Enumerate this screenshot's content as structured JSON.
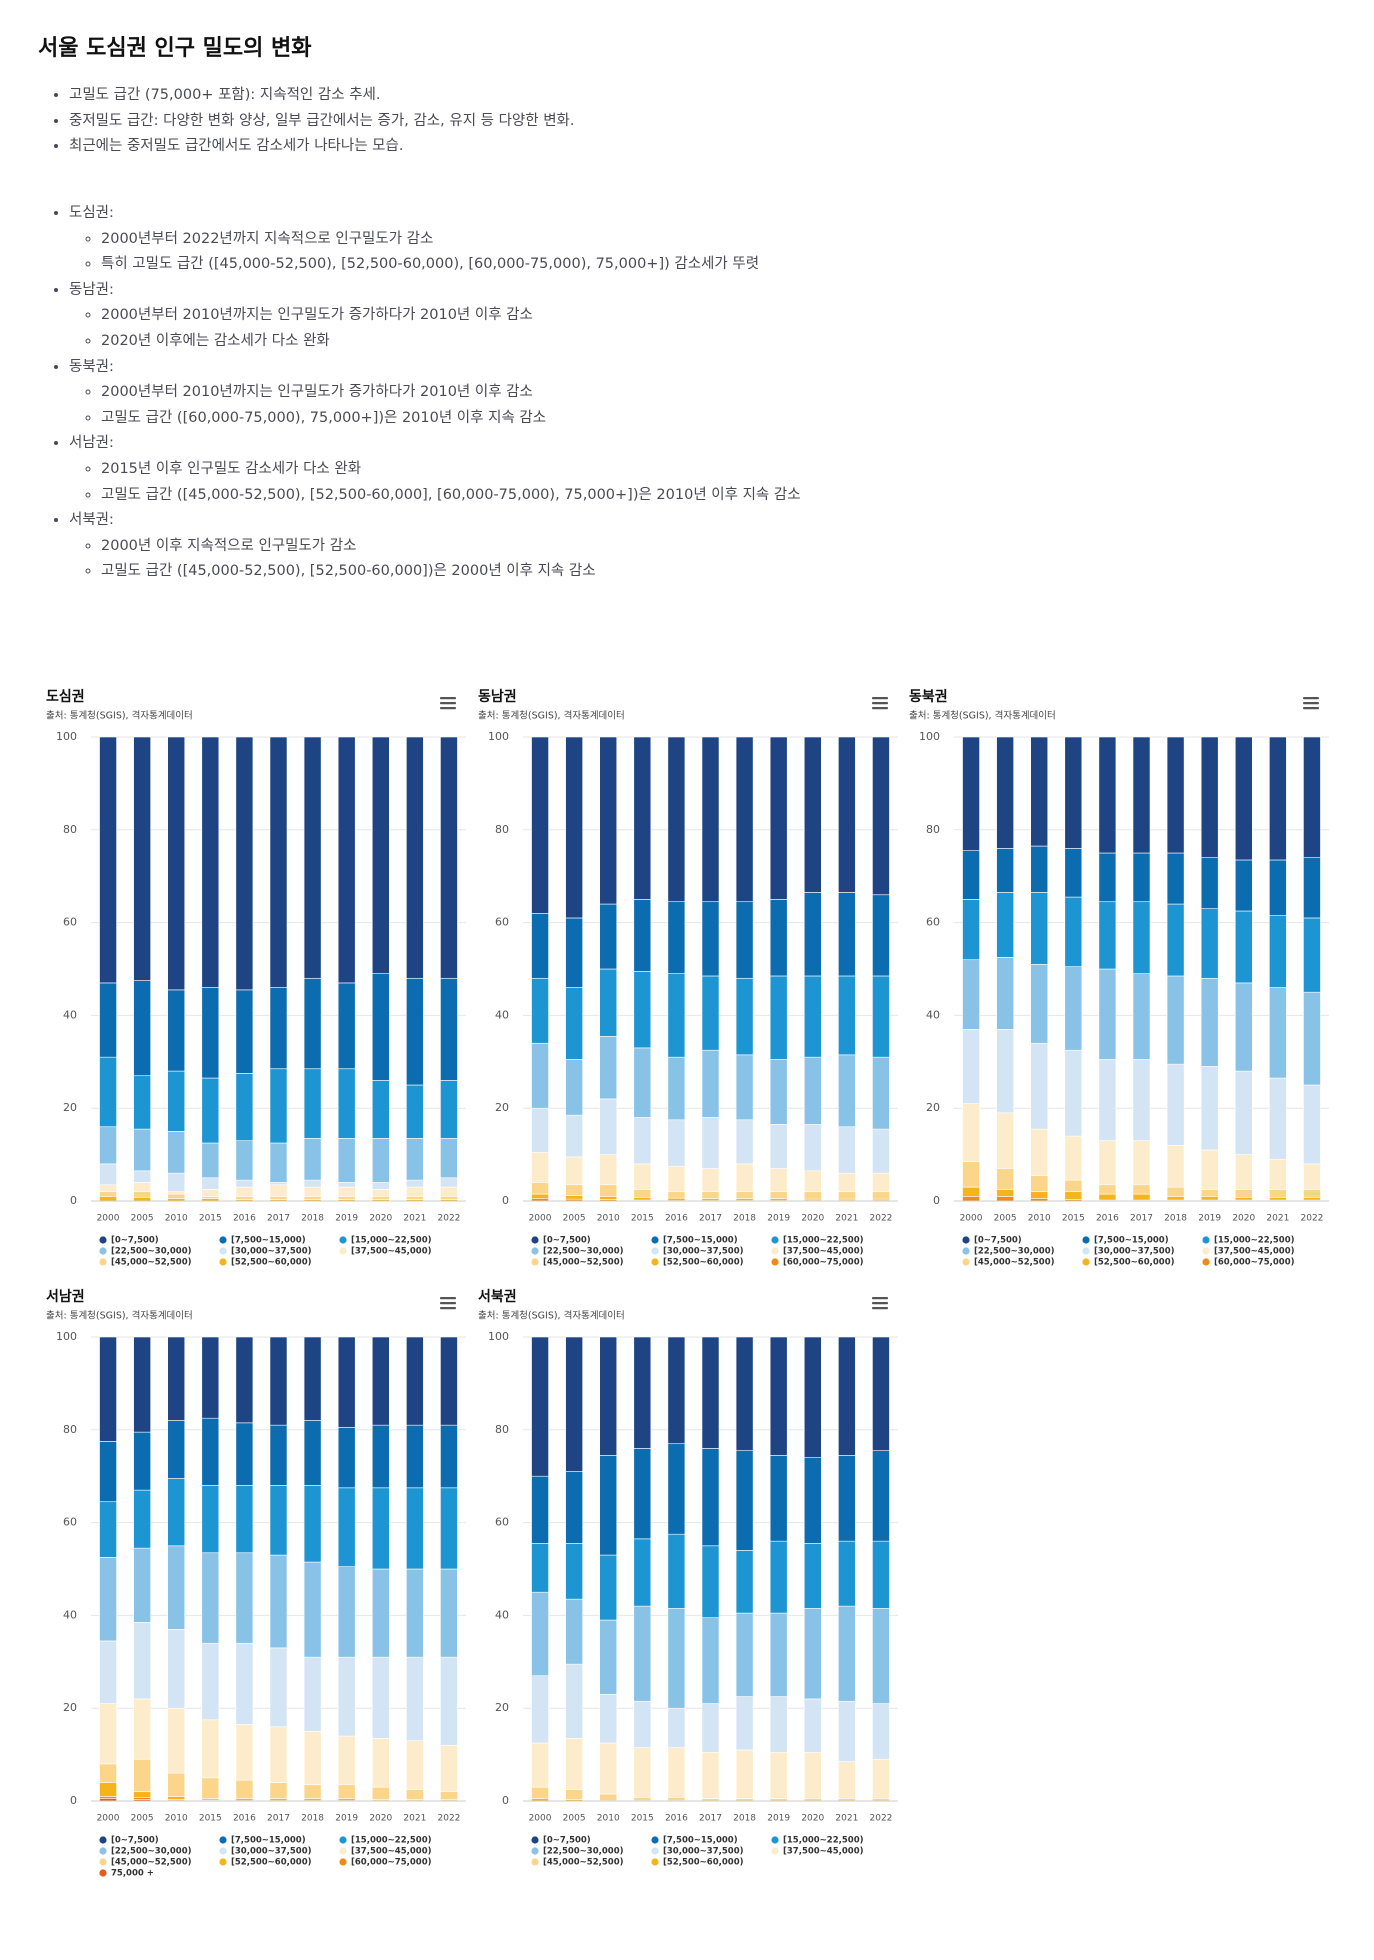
{
  "title": "서울 도심권 인구 밀도의 변화",
  "summary": [
    "고밀도 급간 (75,000+ 포함): 지속적인 감소 추세.",
    "중저밀도 급간: 다양한 변화 양상, 일부 급간에서는 증가, 감소, 유지 등 다양한 변화.",
    "최근에는 중저밀도 급간에서도 감소세가 나타나는 모습."
  ],
  "regions": [
    {
      "name": "도심권:",
      "points": [
        "2000년부터 2022년까지 지속적으로 인구밀도가 감소",
        "특히 고밀도 급간 ([45,000-52,500), [52,500-60,000), [60,000-75,000), 75,000+]) 감소세가 뚜렷"
      ]
    },
    {
      "name": "동남권:",
      "points": [
        "2000년부터 2010년까지는 인구밀도가 증가하다가 2010년 이후 감소",
        "2020년 이후에는 감소세가 다소 완화"
      ]
    },
    {
      "name": "동북권:",
      "points": [
        "2000년부터 2010년까지는 인구밀도가 증가하다가 2010년 이후 감소",
        "고밀도 급간 ([60,000-75,000), 75,000+])은 2010년 이후 지속 감소"
      ]
    },
    {
      "name": "서남권:",
      "points": [
        "2015년 이후 인구밀도 감소세가 다소 완화",
        "고밀도 급간 ([45,000-52,500), [52,500-60,000], [60,000-75,000), 75,000+])은 2010년 이후 지속 감소"
      ]
    },
    {
      "name": "서북권:",
      "points": [
        "2000년 이후 지속적으로 인구밀도가 감소",
        "고밀도 급간 ([45,000-52,500), [52,500-60,000])은 2000년 이후 지속 감소"
      ]
    }
  ],
  "chart_data": [
    {
      "type": "bar",
      "stacked": true,
      "grid": true,
      "title": "도심권",
      "subtitle": "출처: 통계청(SGIS), 격자통계데이터",
      "categories": [
        "2000",
        "2005",
        "2010",
        "2015",
        "2016",
        "2017",
        "2018",
        "2019",
        "2020",
        "2021",
        "2022"
      ],
      "ylim": [
        0,
        100
      ],
      "yticks": [
        0,
        20,
        40,
        60,
        80,
        100
      ],
      "series": [
        {
          "name": "[0~7,500)",
          "color": "#1f4484",
          "values": [
            53,
            52.5,
            54.5,
            54,
            54.5,
            54,
            52,
            53,
            51,
            52,
            52
          ]
        },
        {
          "name": "[7,500~15,000)",
          "color": "#0b6db0",
          "values": [
            16,
            20.5,
            17.5,
            19.5,
            18,
            17.5,
            19.5,
            18.5,
            23,
            23,
            22
          ]
        },
        {
          "name": "[15,000~22,500)",
          "color": "#1d95d3",
          "values": [
            15,
            11.5,
            13,
            14,
            14.5,
            16,
            15,
            15,
            12.5,
            11.5,
            12.5
          ]
        },
        {
          "name": "[22,500~30,000)",
          "color": "#88c2e7",
          "values": [
            8,
            9,
            9,
            7.5,
            8.5,
            8.5,
            9,
            9.5,
            9.5,
            9,
            8.5
          ]
        },
        {
          "name": "[30,000~37,500)",
          "color": "#d3e4f4",
          "values": [
            4.5,
            2.5,
            4,
            2.5,
            1.5,
            0.5,
            1.5,
            1,
            1.5,
            1.5,
            2
          ]
        },
        {
          "name": "[37,500~45,000)",
          "color": "#fdeccb",
          "values": [
            1.5,
            2,
            0.5,
            1.5,
            2,
            2.5,
            2,
            2,
            1.5,
            2,
            2
          ]
        },
        {
          "name": "[45,000~52,500)",
          "color": "#fbd68a",
          "values": [
            1,
            1.2,
            1,
            0.5,
            0.7,
            0.7,
            0.7,
            0.7,
            0.7,
            0.7,
            0.7
          ]
        },
        {
          "name": "[52,500~60,000)",
          "color": "#f4b41a",
          "values": [
            1,
            0.8,
            0.5,
            0.5,
            0.3,
            0.3,
            0.3,
            0.3,
            0.3,
            0.3,
            0.3
          ]
        }
      ]
    },
    {
      "type": "bar",
      "stacked": true,
      "grid": true,
      "title": "동남권",
      "subtitle": "출처: 통계청(SGIS), 격자통계데이터",
      "categories": [
        "2000",
        "2005",
        "2010",
        "2015",
        "2016",
        "2017",
        "2018",
        "2019",
        "2020",
        "2021",
        "2022"
      ],
      "ylim": [
        0,
        100
      ],
      "yticks": [
        0,
        20,
        40,
        60,
        80,
        100
      ],
      "series": [
        {
          "name": "[0~7,500)",
          "color": "#1f4484",
          "values": [
            38,
            39,
            36,
            35,
            35.5,
            35.5,
            35.5,
            35,
            33.5,
            33.5,
            34
          ]
        },
        {
          "name": "[7,500~15,000)",
          "color": "#0b6db0",
          "values": [
            14,
            15,
            14,
            15.5,
            15.5,
            16,
            16.5,
            16.5,
            18,
            18,
            17.5
          ]
        },
        {
          "name": "[15,000~22,500)",
          "color": "#1d95d3",
          "values": [
            14,
            15.5,
            14.5,
            16.5,
            18,
            16,
            16.5,
            18,
            17.5,
            17,
            17.5
          ]
        },
        {
          "name": "[22,500~30,000)",
          "color": "#88c2e7",
          "values": [
            14,
            12,
            13.5,
            15,
            13.5,
            14.5,
            14,
            14,
            14.5,
            15.5,
            15.5
          ]
        },
        {
          "name": "[30,000~37,500)",
          "color": "#d3e4f4",
          "values": [
            9.5,
            9,
            12,
            10,
            10,
            11,
            9.5,
            9.5,
            10,
            10,
            9.5
          ]
        },
        {
          "name": "[37,500~45,000)",
          "color": "#fdeccb",
          "values": [
            6.5,
            6,
            6.5,
            5.5,
            5.5,
            5,
            6,
            5,
            4.5,
            4,
            4
          ]
        },
        {
          "name": "[45,000~52,500)",
          "color": "#fbd68a",
          "values": [
            2.5,
            2.3,
            2.5,
            1.7,
            1.4,
            1.5,
            1.5,
            1.5,
            1.6,
            1.6,
            1.6
          ]
        },
        {
          "name": "[52,500~60,000)",
          "color": "#f4b41a",
          "values": [
            1,
            0.8,
            0.7,
            0.6,
            0.5,
            0.4,
            0.4,
            0.4,
            0.3,
            0.3,
            0.3
          ]
        },
        {
          "name": "[60,000~75,000)",
          "color": "#f08a1c",
          "values": [
            0.5,
            0.4,
            0.3,
            0.2,
            0.1,
            0.1,
            0.1,
            0.1,
            0.1,
            0.1,
            0.1
          ]
        }
      ]
    },
    {
      "type": "bar",
      "stacked": true,
      "grid": true,
      "title": "동북권",
      "subtitle": "출처: 통계청(SGIS), 격자통계데이터",
      "categories": [
        "2000",
        "2005",
        "2010",
        "2015",
        "2016",
        "2017",
        "2018",
        "2019",
        "2020",
        "2021",
        "2022"
      ],
      "ylim": [
        0,
        100
      ],
      "yticks": [
        0,
        20,
        40,
        60,
        80,
        100
      ],
      "series": [
        {
          "name": "[0~7,500)",
          "color": "#1f4484",
          "values": [
            24.5,
            24,
            23.5,
            24,
            25,
            25,
            25,
            26,
            26.5,
            26.5,
            26
          ]
        },
        {
          "name": "[7,500~15,000)",
          "color": "#0b6db0",
          "values": [
            10.5,
            9.5,
            10,
            10.5,
            10.5,
            10.5,
            11,
            11,
            11,
            12,
            13
          ]
        },
        {
          "name": "[15,000~22,500)",
          "color": "#1d95d3",
          "values": [
            13,
            14,
            15.5,
            15,
            14.5,
            15.5,
            15.5,
            15,
            15.5,
            15.5,
            16
          ]
        },
        {
          "name": "[22,500~30,000)",
          "color": "#88c2e7",
          "values": [
            15,
            15.5,
            17,
            18,
            19.5,
            18.5,
            19,
            19,
            19,
            19.5,
            20
          ]
        },
        {
          "name": "[30,000~37,500)",
          "color": "#d3e4f4",
          "values": [
            16,
            18,
            18.5,
            18.5,
            17.5,
            17.5,
            17.5,
            18,
            18,
            17.5,
            17
          ]
        },
        {
          "name": "[37,500~45,000)",
          "color": "#fdeccb",
          "values": [
            12.5,
            12,
            10,
            9.5,
            9.5,
            9.5,
            9,
            8.5,
            7.5,
            6.5,
            5.5
          ]
        },
        {
          "name": "[45,000~52,500)",
          "color": "#fbd68a",
          "values": [
            5.5,
            4.5,
            3.5,
            2.5,
            2,
            2,
            2,
            1.5,
            1.7,
            1.7,
            1.7
          ]
        },
        {
          "name": "[52,500~60,000)",
          "color": "#f4b41a",
          "values": [
            2,
            1.5,
            1.5,
            1.7,
            1.3,
            1.3,
            0.8,
            0.8,
            0.6,
            0.6,
            0.6
          ]
        },
        {
          "name": "[60,000~75,000)",
          "color": "#f08a1c",
          "values": [
            1,
            1,
            0.5,
            0.3,
            0.2,
            0.2,
            0.2,
            0.2,
            0.2,
            0.2,
            0.2
          ]
        }
      ]
    },
    {
      "type": "bar",
      "stacked": true,
      "grid": true,
      "title": "서남권",
      "subtitle": "출처: 통계청(SGIS), 격자통계데이터",
      "categories": [
        "2000",
        "2005",
        "2010",
        "2015",
        "2016",
        "2017",
        "2018",
        "2019",
        "2020",
        "2021",
        "2022"
      ],
      "ylim": [
        0,
        100
      ],
      "yticks": [
        0,
        20,
        40,
        60,
        80,
        100
      ],
      "series": [
        {
          "name": "[0~7,500)",
          "color": "#1f4484",
          "values": [
            22.5,
            20.5,
            18,
            17.5,
            18.5,
            19,
            18,
            19.5,
            19,
            19,
            19
          ]
        },
        {
          "name": "[7,500~15,000)",
          "color": "#0b6db0",
          "values": [
            13,
            12.5,
            12.5,
            14.5,
            13.5,
            13,
            14,
            13,
            13.5,
            13.5,
            13.5
          ]
        },
        {
          "name": "[15,000~22,500)",
          "color": "#1d95d3",
          "values": [
            12,
            12.5,
            14.5,
            14.5,
            14.5,
            15,
            16.5,
            17,
            17.5,
            17.5,
            17.5
          ]
        },
        {
          "name": "[22,500~30,000)",
          "color": "#88c2e7",
          "values": [
            18,
            16,
            18,
            19.5,
            19.5,
            20,
            20.5,
            19.5,
            19,
            19,
            19
          ]
        },
        {
          "name": "[30,000~37,500)",
          "color": "#d3e4f4",
          "values": [
            13.5,
            16.5,
            17,
            16.5,
            17.5,
            17,
            16,
            17,
            17.5,
            18,
            19
          ]
        },
        {
          "name": "[37,500~45,000)",
          "color": "#fdeccb",
          "values": [
            13,
            13,
            14,
            12.5,
            12,
            12,
            11.5,
            10.5,
            10.5,
            10.5,
            10
          ]
        },
        {
          "name": "[45,000~52,500)",
          "color": "#fbd68a",
          "values": [
            4,
            7,
            5,
            4.5,
            4,
            3.5,
            3,
            3,
            2.7,
            2.2,
            1.7
          ]
        },
        {
          "name": "[52,500~60,000)",
          "color": "#f4b41a",
          "values": [
            3,
            1.2,
            0.7,
            0.3,
            0.4,
            0.4,
            0.4,
            0.4,
            0.2,
            0.2,
            0.2
          ]
        },
        {
          "name": "[60,000~75,000)",
          "color": "#f08a1c",
          "values": [
            0.5,
            0.5,
            0.2,
            0.2,
            0.1,
            0.1,
            0.1,
            0.1,
            0.1,
            0.1,
            0.1
          ]
        },
        {
          "name": "75,000 +",
          "color": "#e85a1a",
          "values": [
            0.5,
            0.3,
            0.1,
            0,
            0,
            0,
            0,
            0,
            0,
            0,
            0
          ]
        }
      ]
    },
    {
      "type": "bar",
      "stacked": true,
      "grid": true,
      "title": "서북권",
      "subtitle": "출처: 통계청(SGIS), 격자통계데이터",
      "categories": [
        "2000",
        "2005",
        "2010",
        "2015",
        "2016",
        "2017",
        "2018",
        "2019",
        "2020",
        "2021",
        "2022"
      ],
      "ylim": [
        0,
        100
      ],
      "yticks": [
        0,
        20,
        40,
        60,
        80,
        100
      ],
      "series": [
        {
          "name": "[0~7,500)",
          "color": "#1f4484",
          "values": [
            30,
            29,
            25.5,
            24,
            23,
            24,
            24.5,
            25.5,
            26,
            25.5,
            24.5
          ]
        },
        {
          "name": "[7,500~15,000)",
          "color": "#0b6db0",
          "values": [
            14.5,
            15.5,
            21.5,
            19.5,
            19.5,
            21,
            21.5,
            18.5,
            18.5,
            18.5,
            19.5
          ]
        },
        {
          "name": "[15,000~22,500)",
          "color": "#1d95d3",
          "values": [
            10.5,
            12,
            14,
            14.5,
            16,
            15.5,
            13.5,
            15.5,
            14,
            14,
            14.5
          ]
        },
        {
          "name": "[22,500~30,000)",
          "color": "#88c2e7",
          "values": [
            18,
            14,
            16,
            20.5,
            21.5,
            18.5,
            18,
            18,
            19.5,
            20.5,
            20.5
          ]
        },
        {
          "name": "[30,000~37,500)",
          "color": "#d3e4f4",
          "values": [
            14.5,
            16,
            10.5,
            10,
            8.5,
            10.5,
            11.5,
            12,
            11.5,
            13,
            12
          ]
        },
        {
          "name": "[37,500~45,000)",
          "color": "#fdeccb",
          "values": [
            9.5,
            11,
            11,
            10.7,
            10.7,
            10,
            10.5,
            10,
            10,
            8,
            8.5
          ]
        },
        {
          "name": "[45,000~52,500)",
          "color": "#fbd68a",
          "values": [
            2.5,
            2.2,
            1.4,
            0.7,
            0.7,
            0.5,
            0.5,
            0.5,
            0.5,
            0.5,
            0.5
          ]
        },
        {
          "name": "[52,500~60,000)",
          "color": "#f4b41a",
          "values": [
            0.5,
            0.3,
            0.1,
            0.1,
            0.1,
            0,
            0,
            0,
            0,
            0,
            0
          ]
        }
      ]
    }
  ]
}
